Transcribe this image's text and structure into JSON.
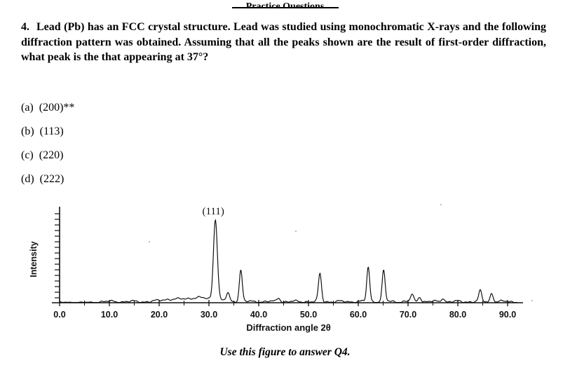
{
  "page": {
    "header_partial": "Practice Questions",
    "caption": "Use this figure to answer Q4."
  },
  "question": {
    "number": "4.",
    "text": "Lead (Pb) has an FCC crystal structure.  Lead was studied using monochromatic X-rays and the following diffraction pattern was obtained. Assuming that all the peaks shown are the result of first-order diffraction, what peak is the that appearing at 37°?",
    "options": [
      {
        "label": "(a)",
        "text": "(200)**"
      },
      {
        "label": "(b)",
        "text": "(113)"
      },
      {
        "label": "(c)",
        "text": "(220)"
      },
      {
        "label": "(d)",
        "text": "(222)"
      }
    ]
  },
  "chart_data": {
    "type": "line",
    "xlabel": "Diffraction angle 2θ",
    "ylabel": "Intensity",
    "x_ticks": [
      "0.0",
      "10.0",
      "20.0",
      "30.0",
      "40.0",
      "50.0",
      "60.0",
      "70.0",
      "80.0",
      "90.0"
    ],
    "xlim": [
      0,
      95
    ],
    "grid": false,
    "peak_annotation": "(111)",
    "peaks": [
      {
        "two_theta": 31.3,
        "intensity": 116,
        "label": "(111)"
      },
      {
        "two_theta": 33.8,
        "intensity": 12
      },
      {
        "two_theta": 36.4,
        "intensity": 45
      },
      {
        "two_theta": 44.0,
        "intensity": 6
      },
      {
        "two_theta": 52.3,
        "intensity": 40
      },
      {
        "two_theta": 62.0,
        "intensity": 49
      },
      {
        "two_theta": 65.1,
        "intensity": 44
      },
      {
        "two_theta": 70.8,
        "intensity": 10
      },
      {
        "two_theta": 72.3,
        "intensity": 7
      },
      {
        "two_theta": 77.0,
        "intensity": 5
      },
      {
        "two_theta": 84.5,
        "intensity": 15
      },
      {
        "two_theta": 86.8,
        "intensity": 12
      }
    ]
  }
}
